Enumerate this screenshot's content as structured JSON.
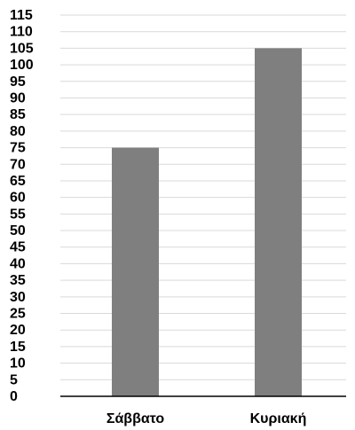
{
  "chart_data": {
    "type": "bar",
    "categories": [
      "Σάββατο",
      "Κυριακή"
    ],
    "values": [
      75,
      105
    ],
    "ylim": [
      0,
      115
    ],
    "y_tick_step": 5,
    "y_ticks": [
      "0",
      "5",
      "10",
      "15",
      "20",
      "25",
      "30",
      "35",
      "40",
      "45",
      "50",
      "55",
      "60",
      "65",
      "70",
      "75",
      "80",
      "85",
      "90",
      "95",
      "100",
      "105",
      "110",
      "115"
    ],
    "grid": true,
    "title": "",
    "xlabel": "",
    "ylabel": "",
    "bar_color": "#7f7f7f",
    "grid_color": "#d9d9d9"
  }
}
